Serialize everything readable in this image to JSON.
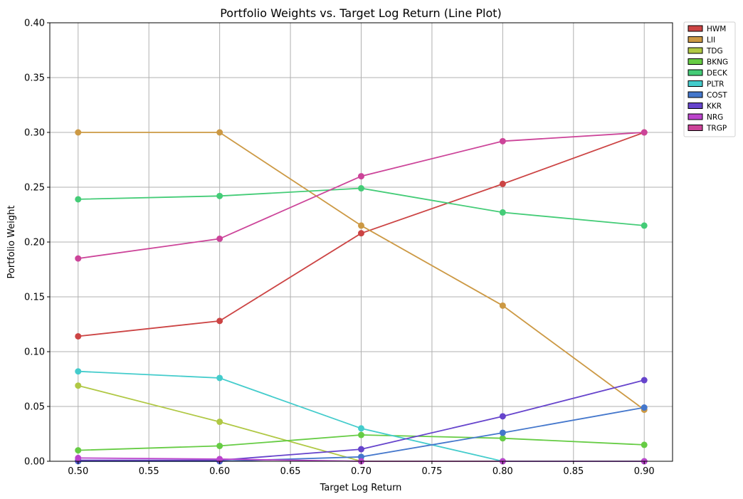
{
  "chart_data": {
    "type": "line",
    "title": "Portfolio Weights vs. Target Log Return (Line Plot)",
    "xlabel": "Target Log Return",
    "ylabel": "Portfolio Weight",
    "x": [
      0.5,
      0.6,
      0.7,
      0.8,
      0.9
    ],
    "xlim": [
      0.48,
      0.92
    ],
    "ylim": [
      0.0,
      0.4
    ],
    "xticks": [
      "0.50",
      "0.55",
      "0.60",
      "0.65",
      "0.70",
      "0.75",
      "0.80",
      "0.85",
      "0.90"
    ],
    "xtick_values": [
      0.5,
      0.55,
      0.6,
      0.65,
      0.7,
      0.75,
      0.8,
      0.85,
      0.9
    ],
    "yticks": [
      "0.00",
      "0.05",
      "0.10",
      "0.15",
      "0.20",
      "0.25",
      "0.30",
      "0.35",
      "0.40"
    ],
    "ytick_values": [
      0.0,
      0.05,
      0.1,
      0.15,
      0.2,
      0.25,
      0.3,
      0.35,
      0.4
    ],
    "grid": true,
    "legend_position": "outside-top-right",
    "series": [
      {
        "name": "HWM",
        "color": "#cc4444",
        "values": [
          0.114,
          0.128,
          0.208,
          0.253,
          0.3
        ]
      },
      {
        "name": "LII",
        "color": "#cc9944",
        "values": [
          0.3,
          0.3,
          0.215,
          0.142,
          0.047
        ]
      },
      {
        "name": "TDG",
        "color": "#b0c844",
        "values": [
          0.069,
          0.036,
          0.0,
          0.0,
          0.0
        ]
      },
      {
        "name": "BKNG",
        "color": "#66cc44",
        "values": [
          0.01,
          0.014,
          0.024,
          0.021,
          0.015
        ]
      },
      {
        "name": "DECK",
        "color": "#44cc77",
        "values": [
          0.239,
          0.242,
          0.249,
          0.227,
          0.215
        ]
      },
      {
        "name": "PLTR",
        "color": "#44cccc",
        "values": [
          0.082,
          0.076,
          0.03,
          0.0,
          0.0
        ]
      },
      {
        "name": "COST",
        "color": "#4477cc",
        "values": [
          0.0,
          0.0,
          0.004,
          0.026,
          0.049
        ]
      },
      {
        "name": "KKR",
        "color": "#6644cc",
        "values": [
          0.001,
          0.001,
          0.011,
          0.041,
          0.074
        ]
      },
      {
        "name": "NRG",
        "color": "#bb44cc",
        "values": [
          0.003,
          0.002,
          0.0,
          0.0,
          0.0
        ]
      },
      {
        "name": "TRGP",
        "color": "#cc4499",
        "values": [
          0.185,
          0.203,
          0.26,
          0.292,
          0.3
        ]
      }
    ]
  }
}
